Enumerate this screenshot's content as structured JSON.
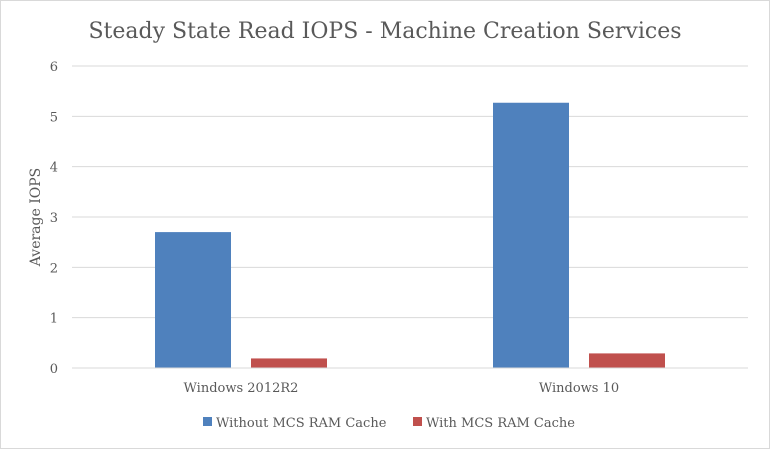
{
  "chart_data": {
    "type": "bar",
    "title": "Steady State Read IOPS - Machine Creation Services",
    "xlabel": "",
    "ylabel": "Average IOPS",
    "categories": [
      "Windows 2012R2",
      "Windows 10"
    ],
    "series": [
      {
        "name": "Without MCS RAM Cache",
        "color": "#4f81bd",
        "values": [
          2.7,
          5.27
        ]
      },
      {
        "name": "With MCS RAM Cache",
        "color": "#c0504d",
        "values": [
          0.19,
          0.29
        ]
      }
    ],
    "ylim": [
      0,
      6
    ],
    "yticks": [
      "0",
      "1",
      "2",
      "3",
      "4",
      "5",
      "6"
    ],
    "grid": true,
    "legend_position": "bottom"
  }
}
